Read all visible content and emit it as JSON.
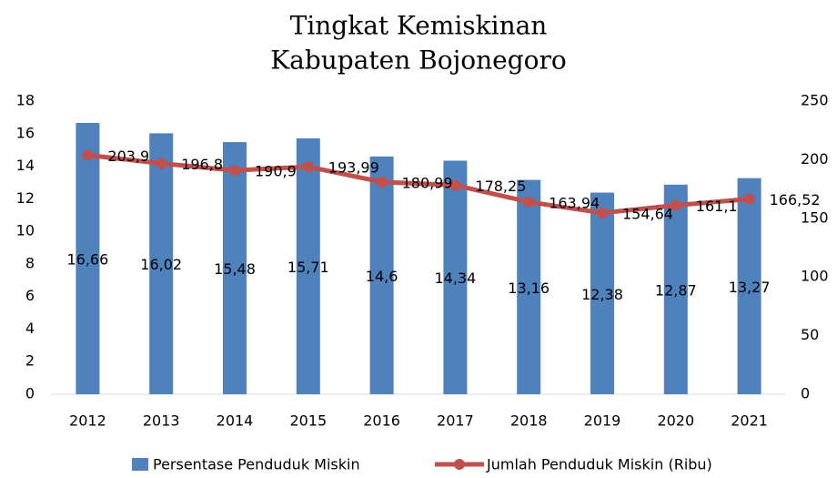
{
  "chart_data": {
    "type": "bar",
    "title": [
      "Tingkat Kemiskinan",
      "Kabupaten Bojonegoro"
    ],
    "categories": [
      "2012",
      "2013",
      "2014",
      "2015",
      "2016",
      "2017",
      "2018",
      "2019",
      "2020",
      "2021"
    ],
    "series": [
      {
        "name": "Persentase Penduduk Miskin",
        "type": "bar",
        "color": "#4f81bd",
        "values": [
          16.66,
          16.02,
          15.48,
          15.71,
          14.6,
          14.34,
          13.16,
          12.38,
          12.87,
          13.27
        ],
        "value_labels": [
          "16,66",
          "16,02",
          "15,48",
          "15,71",
          "14,6",
          "14,34",
          "13,16",
          "12,38",
          "12,87",
          "13,27"
        ]
      },
      {
        "name": "Jumlah Penduduk Miskin (Ribu)",
        "type": "line",
        "axis": "y2",
        "color": "#c0504d",
        "values": [
          203.9,
          196.8,
          190.9,
          193.99,
          180.99,
          178.25,
          163.94,
          154.64,
          161.1,
          166.52
        ],
        "value_labels": [
          "203,9",
          "196,8",
          "190,9",
          "193,99",
          "180,99",
          "178,25",
          "163,94",
          "154,64",
          "161,1",
          "166,52"
        ]
      }
    ],
    "ylim": [
      0,
      18
    ],
    "yticks": [
      0,
      2,
      4,
      6,
      8,
      10,
      12,
      14,
      16,
      18
    ],
    "y2lim": [
      0,
      250
    ],
    "y2ticks": [
      0,
      50,
      100,
      150,
      200,
      250
    ],
    "grid": false,
    "legend": "bottom"
  }
}
